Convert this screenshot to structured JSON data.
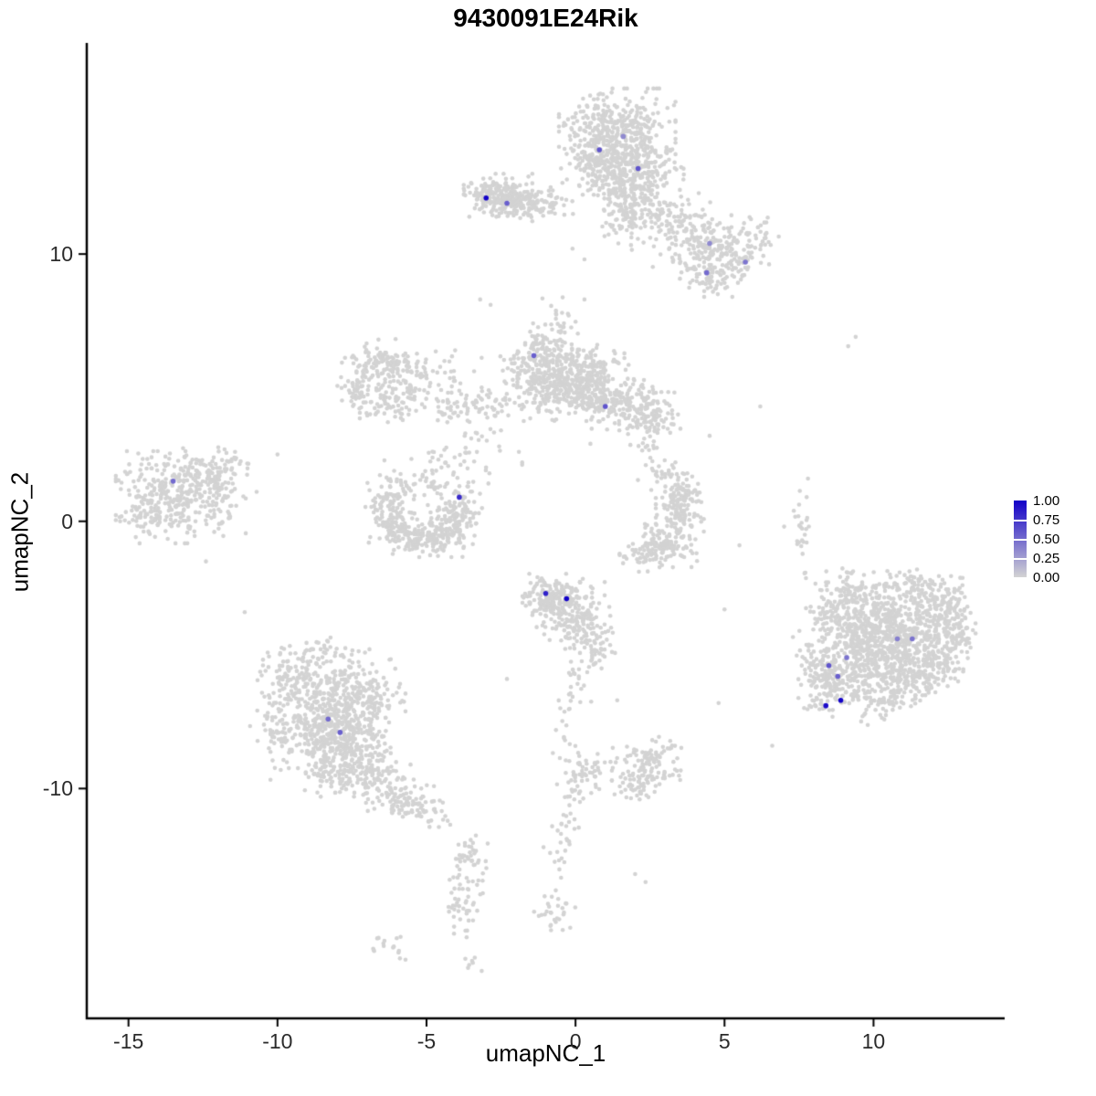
{
  "title": "9430091E24Rik",
  "axes": {
    "x_label": "umapNC_1",
    "y_label": "umapNC_2"
  },
  "legend": {
    "labels": [
      "1.00",
      "0.75",
      "0.50",
      "0.25",
      "0.00"
    ],
    "values": [
      1.0,
      0.75,
      0.5,
      0.25,
      0.0
    ]
  },
  "chart_data": {
    "type": "scatter",
    "title": "9430091E24Rik",
    "xlabel": "umapNC_1",
    "ylabel": "umapNC_2",
    "xlim": [
      -16.4,
      14.4
    ],
    "ylim": [
      -18.6,
      17.9
    ],
    "x_tick_values": [
      -15,
      -10,
      -5,
      0,
      5,
      10
    ],
    "y_tick_values": [
      10,
      0,
      -10
    ],
    "grid": false,
    "legend_position": "right",
    "colors": {
      "low": "#d3d3d3",
      "high": "#1200c8"
    },
    "point_radius": 2.3,
    "expressed_point_radius": 2.8,
    "background_clusters": [
      {
        "name": "top-center",
        "blobs": [
          [
            1.4,
            14.7,
            0.85,
            0.65,
            330
          ],
          [
            0.9,
            13.6,
            0.6,
            0.6,
            220
          ],
          [
            2.2,
            13.1,
            0.65,
            0.55,
            180
          ],
          [
            1.7,
            12.2,
            0.45,
            0.45,
            90
          ],
          [
            1.6,
            11.2,
            0.35,
            0.5,
            60
          ],
          [
            2.7,
            11.7,
            0.5,
            0.5,
            70
          ],
          [
            3.6,
            10.9,
            0.55,
            0.6,
            80
          ],
          [
            4.4,
            10.3,
            0.6,
            0.6,
            90
          ],
          [
            5.3,
            9.8,
            0.6,
            0.45,
            90
          ],
          [
            4.5,
            9.2,
            0.45,
            0.35,
            50
          ],
          [
            5.9,
            10.7,
            0.4,
            0.4,
            40
          ]
        ]
      },
      {
        "name": "upper-left",
        "blobs": [
          [
            -2.6,
            12.2,
            0.5,
            0.35,
            150
          ],
          [
            -1.8,
            12.0,
            0.45,
            0.3,
            90
          ],
          [
            -1.0,
            11.8,
            0.5,
            0.25,
            45
          ],
          [
            -3.1,
            12.15,
            0.2,
            0.25,
            30
          ]
        ]
      },
      {
        "name": "middle",
        "blobs": [
          [
            -0.2,
            5.7,
            0.8,
            0.55,
            240
          ],
          [
            -0.8,
            4.9,
            0.5,
            0.5,
            140
          ],
          [
            0.6,
            4.9,
            0.6,
            0.5,
            160
          ],
          [
            1.7,
            4.3,
            0.7,
            0.45,
            160
          ],
          [
            2.6,
            3.9,
            0.4,
            0.4,
            60
          ],
          [
            -1.6,
            5.6,
            0.4,
            0.5,
            70
          ],
          [
            -1.1,
            6.6,
            0.3,
            0.35,
            40
          ],
          [
            -0.6,
            7.5,
            0.3,
            0.55,
            25
          ],
          [
            -2.9,
            4.4,
            0.6,
            0.3,
            45
          ],
          [
            -4.0,
            4.2,
            0.5,
            0.3,
            35
          ]
        ]
      },
      {
        "name": "middle-left-ring",
        "blobs": [
          [
            -6.7,
            5.9,
            0.45,
            0.4,
            70
          ],
          [
            -7.3,
            5.1,
            0.3,
            0.45,
            55
          ],
          [
            -6.5,
            4.4,
            0.5,
            0.3,
            55
          ],
          [
            -5.7,
            4.9,
            0.3,
            0.45,
            45
          ],
          [
            -6.0,
            5.9,
            0.35,
            0.3,
            35
          ],
          [
            -5.2,
            5.7,
            0.3,
            0.3,
            25
          ],
          [
            -4.3,
            5.3,
            0.5,
            0.6,
            30
          ],
          [
            -3.4,
            2.5,
            0.7,
            0.6,
            35
          ]
        ]
      },
      {
        "name": "far-left",
        "blobs": [
          [
            -13.7,
            0.9,
            0.75,
            0.75,
            260
          ],
          [
            -12.6,
            1.7,
            0.55,
            0.5,
            90
          ],
          [
            -12.1,
            0.6,
            0.45,
            0.5,
            60
          ],
          [
            -11.7,
            1.9,
            0.35,
            0.35,
            35
          ],
          [
            -14.5,
            0.2,
            0.3,
            0.4,
            35
          ]
        ]
      },
      {
        "name": "center-left-crescent",
        "blobs": [
          [
            -6.3,
            0.6,
            0.35,
            0.55,
            70
          ],
          [
            -5.9,
            -0.3,
            0.45,
            0.4,
            90
          ],
          [
            -5.0,
            -0.65,
            0.55,
            0.3,
            110
          ],
          [
            -4.1,
            -0.3,
            0.35,
            0.45,
            85
          ],
          [
            -3.8,
            0.6,
            0.3,
            0.4,
            60
          ],
          [
            -5.6,
            1.3,
            0.6,
            0.45,
            55
          ],
          [
            -4.6,
            1.9,
            0.4,
            0.4,
            25
          ]
        ]
      },
      {
        "name": "center-right-crescent",
        "blobs": [
          [
            3.5,
            0.3,
            0.35,
            0.65,
            110
          ],
          [
            3.1,
            -0.8,
            0.45,
            0.4,
            95
          ],
          [
            2.4,
            -1.2,
            0.4,
            0.3,
            65
          ],
          [
            3.6,
            1.1,
            0.3,
            0.3,
            45
          ],
          [
            2.9,
            1.8,
            0.35,
            0.35,
            25
          ],
          [
            2.4,
            2.9,
            0.25,
            0.25,
            14
          ]
        ]
      },
      {
        "name": "center-small",
        "blobs": [
          [
            -0.4,
            -3.0,
            0.6,
            0.45,
            170
          ],
          [
            0.1,
            -3.9,
            0.5,
            0.45,
            100
          ],
          [
            0.7,
            -4.7,
            0.3,
            0.35,
            45
          ],
          [
            -1.1,
            -2.9,
            0.35,
            0.35,
            60
          ],
          [
            0.1,
            -5.9,
            0.25,
            0.6,
            22
          ],
          [
            -0.3,
            -7.3,
            0.2,
            0.6,
            16
          ]
        ]
      },
      {
        "name": "lower-small-groups",
        "blobs": [
          [
            0.3,
            -9.4,
            0.4,
            0.4,
            60
          ],
          [
            2.4,
            -9.1,
            0.5,
            0.45,
            110
          ],
          [
            2.0,
            -9.9,
            0.3,
            0.3,
            35
          ],
          [
            -0.2,
            -10.8,
            0.2,
            0.5,
            18
          ],
          [
            -0.5,
            -12.2,
            0.25,
            0.7,
            20
          ],
          [
            -0.7,
            -14.7,
            0.3,
            0.35,
            28
          ],
          [
            -3.6,
            -12.9,
            0.3,
            0.5,
            45
          ],
          [
            -3.8,
            -14.3,
            0.3,
            0.55,
            40
          ],
          [
            -6.1,
            -15.9,
            0.3,
            0.25,
            16
          ],
          [
            -3.4,
            -16.6,
            0.2,
            0.15,
            7
          ]
        ]
      },
      {
        "name": "bottom-left",
        "blobs": [
          [
            -8.6,
            -6.4,
            0.9,
            0.7,
            210
          ],
          [
            -7.2,
            -6.6,
            0.65,
            0.55,
            140
          ],
          [
            -8.6,
            -8.1,
            0.75,
            0.7,
            230
          ],
          [
            -7.4,
            -8.0,
            0.6,
            0.6,
            170
          ],
          [
            -8.0,
            -9.3,
            0.6,
            0.5,
            110
          ],
          [
            -6.8,
            -9.5,
            0.55,
            0.45,
            90
          ],
          [
            -5.9,
            -10.3,
            0.5,
            0.4,
            70
          ],
          [
            -5.0,
            -10.9,
            0.4,
            0.3,
            45
          ],
          [
            -8.5,
            -5.1,
            1.0,
            0.4,
            60
          ],
          [
            -10.0,
            -7.6,
            0.4,
            0.9,
            45
          ],
          [
            -9.6,
            -5.9,
            0.4,
            0.4,
            40
          ]
        ]
      },
      {
        "name": "bottom-right",
        "blobs": [
          [
            10.6,
            -3.6,
            0.95,
            0.75,
            280
          ],
          [
            11.7,
            -4.3,
            0.75,
            0.65,
            210
          ],
          [
            10.0,
            -4.9,
            0.75,
            0.65,
            210
          ],
          [
            11.0,
            -5.7,
            0.75,
            0.55,
            170
          ],
          [
            9.1,
            -5.8,
            0.55,
            0.55,
            130
          ],
          [
            12.4,
            -3.2,
            0.5,
            0.5,
            90
          ],
          [
            9.5,
            -4.2,
            0.5,
            0.5,
            100
          ],
          [
            12.1,
            -5.4,
            0.45,
            0.4,
            70
          ],
          [
            10.3,
            -6.7,
            0.55,
            0.4,
            75
          ],
          [
            8.4,
            -6.4,
            0.4,
            0.5,
            65
          ],
          [
            8.1,
            -5.2,
            0.35,
            0.5,
            55
          ],
          [
            9.2,
            -2.8,
            0.5,
            0.45,
            85
          ],
          [
            8.5,
            -3.5,
            0.4,
            0.4,
            55
          ],
          [
            11.3,
            -2.4,
            0.7,
            0.3,
            60
          ],
          [
            12.9,
            -4.4,
            0.3,
            0.5,
            40
          ],
          [
            7.6,
            -0.4,
            0.12,
            0.9,
            26
          ]
        ]
      }
    ],
    "sparse_points": [
      [
        9.4,
        6.9
      ],
      [
        9.15,
        6.55
      ],
      [
        -3.2,
        8.3
      ],
      [
        -2.85,
        8.1
      ],
      [
        4.8,
        -6.8
      ],
      [
        0.5,
        2.9
      ],
      [
        -1.9,
        2.6
      ],
      [
        -10.0,
        2.5
      ],
      [
        -10.7,
        1.1
      ],
      [
        7.0,
        -0.2
      ],
      [
        7.8,
        1.6
      ],
      [
        2.0,
        -13.2
      ],
      [
        2.35,
        -13.5
      ],
      [
        4.5,
        3.2
      ],
      [
        5.5,
        -0.9
      ],
      [
        6.2,
        4.3
      ],
      [
        -2.5,
        3.4
      ],
      [
        0.3,
        8.3
      ],
      [
        -11.1,
        -3.4
      ],
      [
        -2.3,
        -5.9
      ],
      [
        1.4,
        -6.7
      ],
      [
        5.0,
        -3.3
      ],
      [
        -12.4,
        -1.5
      ],
      [
        6.6,
        -8.4
      ],
      [
        -0.1,
        10.2
      ],
      [
        0.3,
        9.8
      ]
    ],
    "expressed_points": [
      {
        "x": -3.0,
        "y": 12.1,
        "value": 1.0
      },
      {
        "x": -2.3,
        "y": 11.9,
        "value": 0.55
      },
      {
        "x": 0.8,
        "y": 13.9,
        "value": 0.6
      },
      {
        "x": 1.6,
        "y": 14.4,
        "value": 0.35
      },
      {
        "x": 2.1,
        "y": 13.2,
        "value": 0.6
      },
      {
        "x": 4.5,
        "y": 10.4,
        "value": 0.35
      },
      {
        "x": 5.7,
        "y": 9.7,
        "value": 0.45
      },
      {
        "x": 4.4,
        "y": 9.3,
        "value": 0.5
      },
      {
        "x": -1.4,
        "y": 6.2,
        "value": 0.55
      },
      {
        "x": 1.0,
        "y": 4.3,
        "value": 0.6
      },
      {
        "x": -13.5,
        "y": 1.5,
        "value": 0.5
      },
      {
        "x": -3.9,
        "y": 0.9,
        "value": 0.8
      },
      {
        "x": -1.0,
        "y": -2.7,
        "value": 0.85
      },
      {
        "x": -0.3,
        "y": -2.9,
        "value": 1.0
      },
      {
        "x": -8.3,
        "y": -7.4,
        "value": 0.5
      },
      {
        "x": -7.9,
        "y": -7.9,
        "value": 0.55
      },
      {
        "x": 8.5,
        "y": -5.4,
        "value": 0.6
      },
      {
        "x": 9.1,
        "y": -5.1,
        "value": 0.45
      },
      {
        "x": 8.8,
        "y": -5.8,
        "value": 0.55
      },
      {
        "x": 8.4,
        "y": -6.9,
        "value": 0.95
      },
      {
        "x": 8.9,
        "y": -6.7,
        "value": 1.0
      },
      {
        "x": 10.8,
        "y": -4.4,
        "value": 0.4
      },
      {
        "x": 11.3,
        "y": -4.4,
        "value": 0.45
      }
    ]
  }
}
